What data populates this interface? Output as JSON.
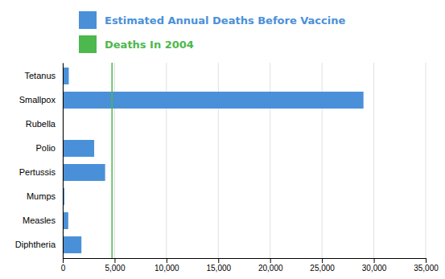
{
  "chart_data": {
    "type": "bar",
    "orientation": "horizontal",
    "categories": [
      "Tetanus",
      "Smallpox",
      "Rubella",
      "Polio",
      "Pertussis",
      "Mumps",
      "Measles",
      "Diphtheria"
    ],
    "series": [
      {
        "name": "Estimated Annual Deaths Before Vaccine",
        "color": "#4a90d9",
        "values": [
          580,
          29000,
          47,
          3030,
          4085,
          162,
          530,
          1800
        ]
      },
      {
        "name": "Deaths In 2004",
        "color": "#4db84d",
        "values": [
          35,
          0,
          10,
          0,
          27,
          0,
          1,
          0
        ]
      }
    ],
    "xlim": [
      0,
      35000
    ],
    "xticks": [
      0,
      {
        "value": 5000,
        "label": "5,000"
      },
      {
        "value": 10000,
        "label": "10,000"
      },
      {
        "value": 15000,
        "label": "15,000"
      },
      {
        "value": 20000,
        "label": "20,000"
      },
      {
        "value": 25000,
        "label": "25,000"
      },
      {
        "value": 30000,
        "label": "30,000"
      },
      {
        "value": 35000,
        "label": "35,000"
      }
    ],
    "grid": true,
    "reference_line": 4750
  }
}
